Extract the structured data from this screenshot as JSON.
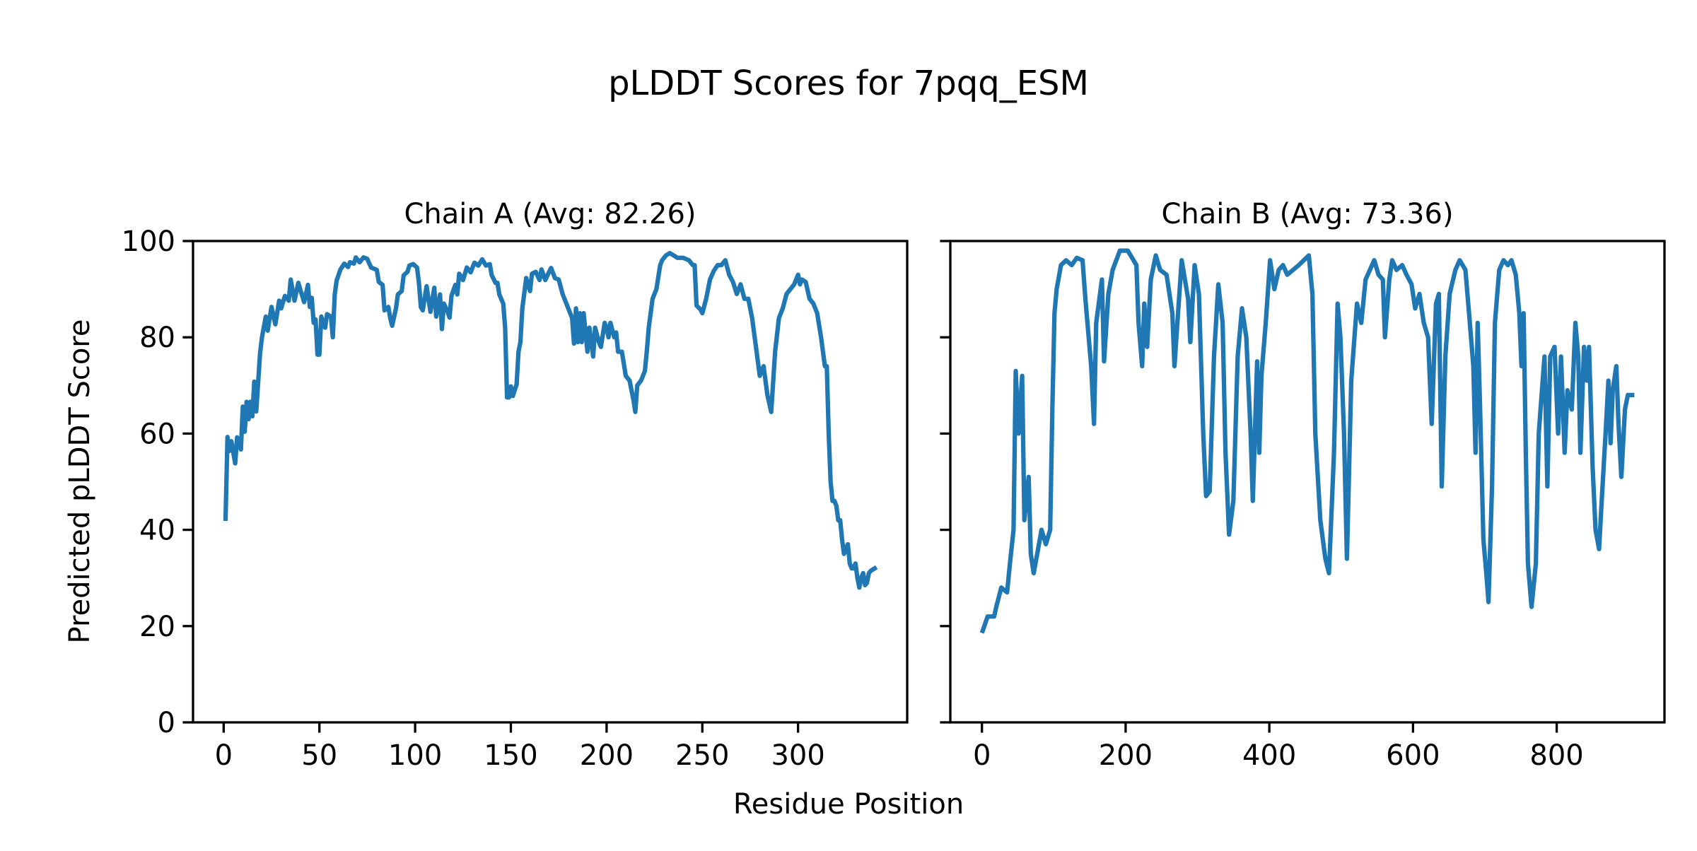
{
  "chart_data": {
    "type": "line",
    "title": "pLDDT Scores for 7pqq_ESM",
    "xlabel": "Residue Position",
    "ylabel": "Predicted pLDDT Score",
    "ylim": [
      0,
      100
    ],
    "yticks": [
      0,
      20,
      40,
      60,
      80,
      100
    ],
    "line_color": "#1f77b4",
    "grid": false,
    "panels": [
      {
        "title": "Chain A (Avg: 82.26)",
        "xlim": [
          -16,
          357
        ],
        "xticks": [
          0,
          50,
          100,
          150,
          200,
          250,
          300
        ],
        "x": [
          1,
          2,
          3,
          4,
          6,
          7,
          9,
          10,
          11,
          12,
          13,
          14,
          15,
          16,
          17,
          19,
          20,
          22,
          23,
          25,
          27,
          29,
          30,
          32,
          34,
          35,
          37,
          39,
          42,
          44,
          45,
          46,
          47,
          48,
          49,
          50,
          51,
          53,
          54,
          56,
          57,
          58,
          59,
          61,
          63,
          65,
          66,
          68,
          69,
          71,
          73,
          75,
          77,
          80,
          81,
          83,
          84,
          86,
          87,
          88,
          90,
          91,
          93,
          94,
          96,
          97,
          99,
          101,
          102,
          103,
          104,
          106,
          108,
          110,
          111,
          113,
          114,
          115,
          117,
          118,
          119,
          121,
          122,
          123,
          125,
          127,
          129,
          131,
          133,
          135,
          137,
          139,
          140,
          142,
          143,
          144,
          146,
          147,
          148,
          149,
          150,
          151,
          153,
          154,
          155,
          156,
          158,
          160,
          161,
          163,
          165,
          166,
          168,
          170,
          171,
          173,
          175,
          177,
          179,
          181,
          182,
          183,
          184,
          185,
          186,
          187,
          188,
          190,
          191,
          193,
          194,
          196,
          197,
          199,
          200,
          201,
          202,
          204,
          205,
          206,
          208,
          210,
          212,
          214,
          215,
          216,
          218,
          220,
          221,
          222,
          224,
          226,
          228,
          229,
          231,
          233,
          235,
          237,
          240,
          243,
          245,
          246,
          247,
          249,
          250,
          252,
          254,
          256,
          258,
          260,
          262,
          264,
          266,
          268,
          270,
          272,
          274,
          276,
          278,
          280,
          282,
          284,
          286,
          288,
          290,
          292,
          294,
          296,
          298,
          300,
          301,
          302,
          304,
          306,
          308,
          310,
          312,
          314,
          315,
          316,
          317,
          318,
          319,
          320,
          321,
          322,
          323,
          324,
          325,
          326,
          327,
          328,
          329,
          330,
          331,
          332,
          333,
          334,
          335,
          336,
          337,
          338,
          340
        ],
        "y": [
          42.3,
          59.3,
          56.4,
          58.4,
          53.8,
          59.2,
          56.7,
          65.6,
          60.4,
          66.6,
          63,
          66.6,
          63.6,
          70.8,
          64.6,
          76.7,
          80,
          84.3,
          81.4,
          86.3,
          82.7,
          87.6,
          86,
          88.6,
          87.6,
          92,
          87.6,
          91.3,
          87.3,
          90.9,
          86.3,
          88.2,
          83,
          83.7,
          76.4,
          76.4,
          84.3,
          82,
          84.8,
          84.3,
          80,
          88.9,
          91.8,
          94.1,
          95.3,
          94.6,
          95.6,
          95.3,
          96.6,
          95.6,
          96.6,
          96.3,
          94.5,
          94,
          91.5,
          90.9,
          85.6,
          86.3,
          84,
          82.4,
          86,
          88.9,
          89.6,
          92.9,
          93.6,
          94.9,
          95.2,
          94.5,
          91.3,
          86.3,
          85.6,
          90.6,
          85.3,
          90.3,
          84.3,
          88.9,
          81.7,
          87,
          85.3,
          84.1,
          88.6,
          90.9,
          88.9,
          93.2,
          91.9,
          94.5,
          93.5,
          95.5,
          94.9,
          96.2,
          94.9,
          95.2,
          92.9,
          91.3,
          91.3,
          88.9,
          87,
          82,
          67.5,
          67.5,
          69.8,
          67.8,
          70.2,
          77,
          79,
          86,
          92.3,
          89.6,
          93.2,
          93.6,
          91.9,
          94.1,
          91.9,
          93.6,
          94.4,
          92.3,
          92,
          89,
          87,
          85,
          84,
          78.7,
          86,
          79,
          85,
          79,
          85,
          77,
          82,
          76,
          82,
          79,
          78,
          83,
          82,
          80,
          83,
          80,
          81,
          77,
          77,
          72,
          71,
          67,
          64.5,
          70,
          71,
          73,
          77,
          82,
          88,
          90,
          95,
          96,
          97,
          97.5,
          97,
          96.5,
          96.5,
          96,
          95,
          95,
          86.6,
          85.8,
          85,
          88,
          92,
          93.8,
          95,
          95,
          96,
          93,
          91.5,
          89,
          91,
          88,
          88,
          84,
          78,
          72,
          74,
          68,
          64.5,
          77,
          84,
          86,
          89,
          90,
          91,
          93,
          91,
          92,
          91.5,
          88,
          87,
          85,
          80,
          74,
          74,
          60,
          50,
          46,
          46,
          45,
          42,
          42,
          38,
          35,
          36,
          37,
          33,
          32,
          32,
          33,
          30,
          28,
          30,
          31,
          28.5,
          29,
          31,
          31.5,
          32
        ]
      },
      {
        "title": "Chain B (Avg: 73.36)",
        "xlim": [
          -44,
          950
        ],
        "xticks": [
          0,
          200,
          400,
          600,
          800
        ],
        "x": [
          1,
          8,
          17,
          20,
          27,
          35,
          39,
          44,
          47,
          51,
          56,
          59,
          65,
          68,
          72,
          77,
          83,
          89,
          95,
          98,
          101,
          104,
          110,
          117,
          125,
          132,
          140,
          144,
          152,
          156,
          159,
          167,
          170,
          176,
          182,
          192,
          203,
          215,
          218,
          223,
          226,
          230,
          235,
          242,
          248,
          257,
          265,
          268,
          272,
          278,
          287,
          290,
          296,
          302,
          308,
          312,
          317,
          323,
          329,
          335,
          339,
          344,
          350,
          356,
          362,
          368,
          374,
          377,
          383,
          386,
          389,
          395,
          401,
          407,
          413,
          419,
          425,
          433,
          441,
          448,
          455,
          460,
          464,
          471,
          478,
          483,
          490,
          495,
          499,
          504,
          508,
          514,
          522,
          528,
          534,
          540,
          546,
          552,
          558,
          561,
          567,
          571,
          577,
          585,
          591,
          598,
          603,
          609,
          615,
          621,
          626,
          632,
          636,
          640,
          645,
          651,
          659,
          665,
          673,
          678,
          684,
          687,
          690,
          693,
          698,
          702,
          705,
          710,
          714,
          720,
          726,
          732,
          737,
          743,
          748,
          751,
          754,
          757,
          760,
          765,
          771,
          775,
          783,
          787,
          791,
          797,
          802,
          806,
          811,
          815,
          821,
          826,
          830,
          833,
          838,
          842,
          845,
          850,
          854,
          859,
          863,
          868,
          872,
          875,
          878,
          883,
          886,
          890,
          895,
          899,
          905
        ],
        "y": [
          19,
          22,
          22,
          24,
          28,
          27,
          33,
          40,
          73,
          60,
          72,
          42,
          51,
          35,
          31,
          35,
          40,
          37,
          40,
          65,
          85,
          90,
          95,
          96,
          95,
          96.5,
          96,
          88,
          74,
          62,
          83,
          92,
          75,
          89,
          94,
          98,
          98,
          95,
          83,
          74,
          87,
          78,
          92,
          97,
          94,
          93,
          85,
          74,
          83,
          96,
          88,
          79,
          95,
          89,
          60,
          47,
          48,
          76,
          91,
          83,
          56,
          39,
          46,
          76,
          86,
          80,
          60,
          46,
          75,
          56,
          72,
          83,
          96,
          90,
          94,
          95,
          93,
          94,
          95,
          96,
          97,
          89,
          60,
          42,
          34,
          31,
          56,
          87,
          80,
          60,
          34,
          71,
          87,
          83,
          92,
          94,
          96,
          93,
          92,
          80,
          92,
          96,
          94,
          95,
          93,
          91,
          86,
          89,
          83,
          80,
          62,
          87,
          89,
          49,
          76,
          89,
          94,
          96,
          94,
          85,
          74,
          56,
          83,
          67,
          38,
          31,
          25,
          49,
          83,
          94,
          96,
          95,
          96,
          93,
          85,
          74,
          85,
          56,
          33,
          24,
          33,
          60,
          76,
          49,
          76,
          78,
          60,
          76,
          56,
          69,
          65,
          83,
          76,
          56,
          78,
          71,
          78,
          53,
          40,
          36,
          47,
          60,
          71,
          58,
          69,
          74,
          62,
          51,
          65,
          68,
          68
        ]
      }
    ]
  }
}
